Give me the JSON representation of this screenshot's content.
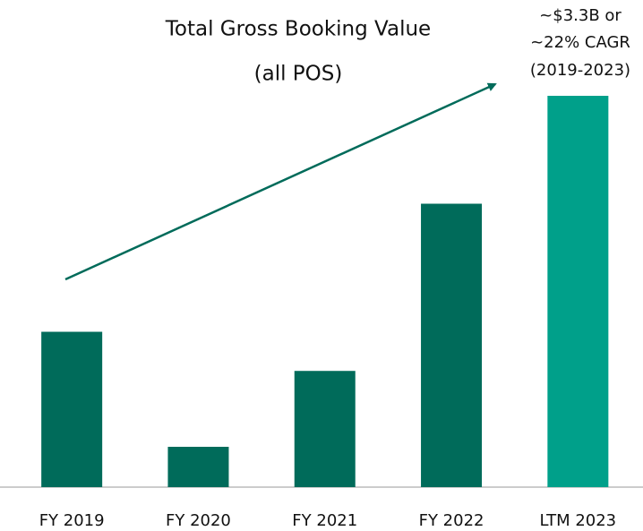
{
  "chart_data": {
    "type": "bar",
    "title": "Total Gross Booking Value",
    "subtitle": "(all POS)",
    "annotation": [
      "~$3.3B or",
      "~22% CAGR",
      "(2019-2023)"
    ],
    "categories": [
      "FY 2019",
      "FY 2020",
      "FY 2021",
      "FY 2022",
      "LTM 2023"
    ],
    "values": [
      1.31,
      0.34,
      0.98,
      2.39,
      3.3
    ],
    "colors": [
      "#006b5a",
      "#006b5a",
      "#006b5a",
      "#006b5a",
      "#00a08a"
    ]
  }
}
